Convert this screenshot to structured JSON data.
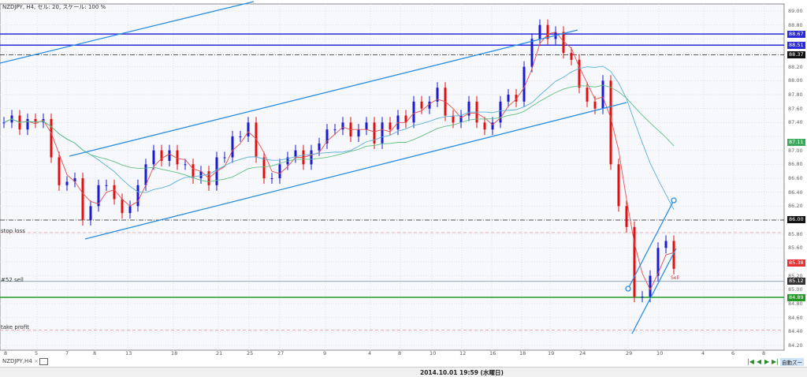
{
  "title": "NZDJPY, H4, セル: 20, スケール: 100 %",
  "lines": {
    "stop_loss": "stop loss",
    "sell": "#52 sell",
    "take_profit": "take profit",
    "sell_marker": "Sell"
  },
  "price_axis": [
    "89.00",
    "88.80",
    "88.20",
    "88.00",
    "87.80",
    "87.60",
    "87.40",
    "87.00",
    "86.80",
    "86.60",
    "86.40",
    "86.20",
    "85.80",
    "85.60",
    "85.20",
    "85.00",
    "84.80",
    "84.60",
    "84.40",
    "84.20"
  ],
  "price_boxes": [
    {
      "text": "88.67",
      "color": "#2b2bd8"
    },
    {
      "text": "88.51",
      "color": "#2b2bd8"
    },
    {
      "text": "88.37",
      "color": "#111111"
    },
    {
      "text": "87.11",
      "color": "#3aaa5a"
    },
    {
      "text": "86.00",
      "color": "#111111"
    },
    {
      "text": "85.38",
      "color": "#e83030"
    },
    {
      "text": "85.12",
      "color": "#333333"
    },
    {
      "text": "84.89",
      "color": "#229922"
    }
  ],
  "time_axis": [
    "8",
    "5",
    "7",
    "8",
    "13",
    "18",
    "21",
    "25",
    "27",
    "9",
    "4",
    "8",
    "10",
    "12",
    "16",
    "18",
    "19",
    "24",
    "29",
    "10",
    "4",
    "6",
    "8"
  ],
  "tab": {
    "label": "NZDJPY,H4",
    "close": "×"
  },
  "status": {
    "datetime": "2014.10.01 19:59 (水曜日)"
  },
  "nav": {
    "first": "|◀",
    "prev": "◀",
    "next": "▶",
    "last": "▶|",
    "autozoom": "自動ズー"
  },
  "colors": {
    "bull": "#1a1ad0",
    "bear": "#e01010",
    "ma_fast": "#e05050",
    "ma_mid": "#5ab0d8",
    "ma_slow": "#60c080",
    "trend": "#2a8ee0"
  },
  "chart_data": {
    "type": "candlestick",
    "symbol": "NZDJPY",
    "timeframe": "H4",
    "ylim": [
      84.2,
      89.0
    ],
    "levels": [
      {
        "price": 88.67,
        "style": "solid"
      },
      {
        "price": 88.51,
        "style": "solid"
      },
      {
        "price": 88.37,
        "style": "dashdot"
      },
      {
        "price": 86.0,
        "style": "dashdot"
      },
      {
        "price": 85.82,
        "name": "stop loss",
        "style": "dashed"
      },
      {
        "price": 85.12,
        "name": "#52 sell",
        "style": "solid"
      },
      {
        "price": 84.89,
        "style": "solid"
      },
      {
        "price": 84.42,
        "name": "take profit",
        "style": "dashed"
      }
    ],
    "closes": [
      87.4,
      87.5,
      87.3,
      87.45,
      87.4,
      87.45,
      86.9,
      86.5,
      86.55,
      86.6,
      86.0,
      86.2,
      86.5,
      86.5,
      86.3,
      86.1,
      86.2,
      86.5,
      86.8,
      87.0,
      86.85,
      87.0,
      86.8,
      86.8,
      86.6,
      86.7,
      86.5,
      86.9,
      86.9,
      87.2,
      87.2,
      87.4,
      86.9,
      86.6,
      86.6,
      86.8,
      86.9,
      87.0,
      86.8,
      87.0,
      87.1,
      87.3,
      87.3,
      87.4,
      87.2,
      87.3,
      87.4,
      87.1,
      87.4,
      87.3,
      87.5,
      87.4,
      87.7,
      87.6,
      87.7,
      87.9,
      87.5,
      87.4,
      87.5,
      87.7,
      87.4,
      87.3,
      87.4,
      87.7,
      87.8,
      87.7,
      88.2,
      88.6,
      88.8,
      88.6,
      88.7,
      88.4,
      88.3,
      87.9,
      87.7,
      87.6,
      88.0,
      86.8,
      86.2,
      85.9,
      84.9,
      84.9,
      85.2,
      85.6,
      85.7,
      85.3
    ]
  }
}
